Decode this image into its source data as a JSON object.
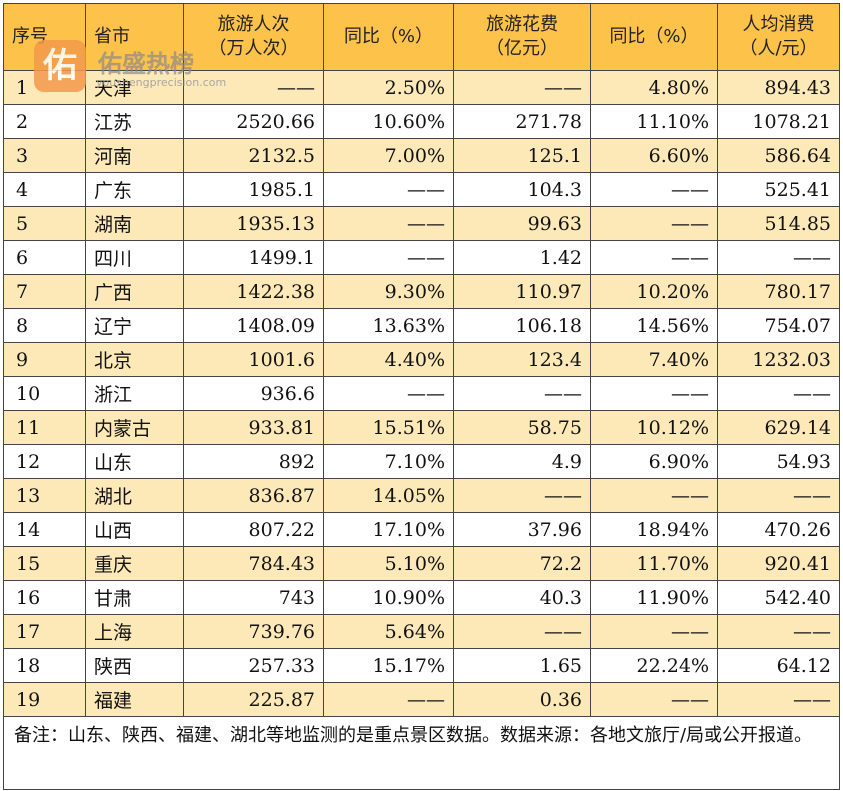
{
  "watermark": {
    "logo_char": "佑",
    "name": "佑盛热榜",
    "url": "youshengprecision.com"
  },
  "headers": {
    "index": "序号",
    "province": "省市",
    "visits_line1": "旅游人次",
    "visits_line2": "（万人次）",
    "visits_yoy": "同比（%）",
    "spend_line1": "旅游花费",
    "spend_line2": "（亿元）",
    "spend_yoy": "同比（%）",
    "per_capita_line1": "人均消费",
    "per_capita_line2": "（人/元）"
  },
  "rows": [
    [
      "1",
      "天津",
      "——",
      "2.50%",
      "——",
      "4.80%",
      "894.43"
    ],
    [
      "2",
      "江苏",
      "2520.66",
      "10.60%",
      "271.78",
      "11.10%",
      "1078.21"
    ],
    [
      "3",
      "河南",
      "2132.5",
      "7.00%",
      "125.1",
      "6.60%",
      "586.64"
    ],
    [
      "4",
      "广东",
      "1985.1",
      "——",
      "104.3",
      "——",
      "525.41"
    ],
    [
      "5",
      "湖南",
      "1935.13",
      "——",
      "99.63",
      "——",
      "514.85"
    ],
    [
      "6",
      "四川",
      "1499.1",
      "——",
      "1.42",
      "——",
      "——"
    ],
    [
      "7",
      "广西",
      "1422.38",
      "9.30%",
      "110.97",
      "10.20%",
      "780.17"
    ],
    [
      "8",
      "辽宁",
      "1408.09",
      "13.63%",
      "106.18",
      "14.56%",
      "754.07"
    ],
    [
      "9",
      "北京",
      "1001.6",
      "4.40%",
      "123.4",
      "7.40%",
      "1232.03"
    ],
    [
      "10",
      "浙江",
      "936.6",
      "——",
      "——",
      "——",
      "——"
    ],
    [
      "11",
      "内蒙古",
      "933.81",
      "15.51%",
      "58.75",
      "10.12%",
      "629.14"
    ],
    [
      "12",
      "山东",
      "892",
      "7.10%",
      "4.9",
      "6.90%",
      "54.93"
    ],
    [
      "13",
      "湖北",
      "836.87",
      "14.05%",
      "——",
      "——",
      "——"
    ],
    [
      "14",
      "山西",
      "807.22",
      "17.10%",
      "37.96",
      "18.94%",
      "470.26"
    ],
    [
      "15",
      "重庆",
      "784.43",
      "5.10%",
      "72.2",
      "11.70%",
      "920.41"
    ],
    [
      "16",
      "甘肃",
      "743",
      "10.90%",
      "40.3",
      "11.90%",
      "542.40"
    ],
    [
      "17",
      "上海",
      "739.76",
      "5.64%",
      "——",
      "——",
      "——"
    ],
    [
      "18",
      "陕西",
      "257.33",
      "15.17%",
      "1.65",
      "22.24%",
      "64.12"
    ],
    [
      "19",
      "福建",
      "225.87",
      "——",
      "0.36",
      "——",
      "——"
    ]
  ],
  "note": "备注：山东、陕西、福建、湖北等地监测的是重点景区数据。数据来源：各地文旅厅/局或公开报道。"
}
